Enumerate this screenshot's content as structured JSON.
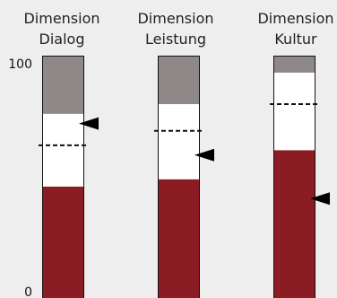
{
  "chart_data": {
    "type": "bar",
    "orientation": "vertical-stacked",
    "y_ticks": [
      "100",
      "0"
    ],
    "ylim": [
      0,
      100
    ],
    "columns": [
      {
        "title_line1": "Dimension",
        "title_line2": "Dialog",
        "red": 46,
        "white": 30,
        "gray": 24,
        "dashed_line": 63,
        "arrow": 72
      },
      {
        "title_line1": "Dimension",
        "title_line2": "Leistung",
        "red": 49,
        "white": 31,
        "gray": 20,
        "dashed_line": 69,
        "arrow": 59
      },
      {
        "title_line1": "Dimension",
        "title_line2": "Kultur",
        "red": 61,
        "white": 32,
        "gray": 7,
        "dashed_line": 80,
        "arrow": 41
      }
    ],
    "colors": {
      "red": "#8c1c23",
      "white": "#ffffff",
      "gray": "#8e8988",
      "border": "#111111"
    }
  }
}
